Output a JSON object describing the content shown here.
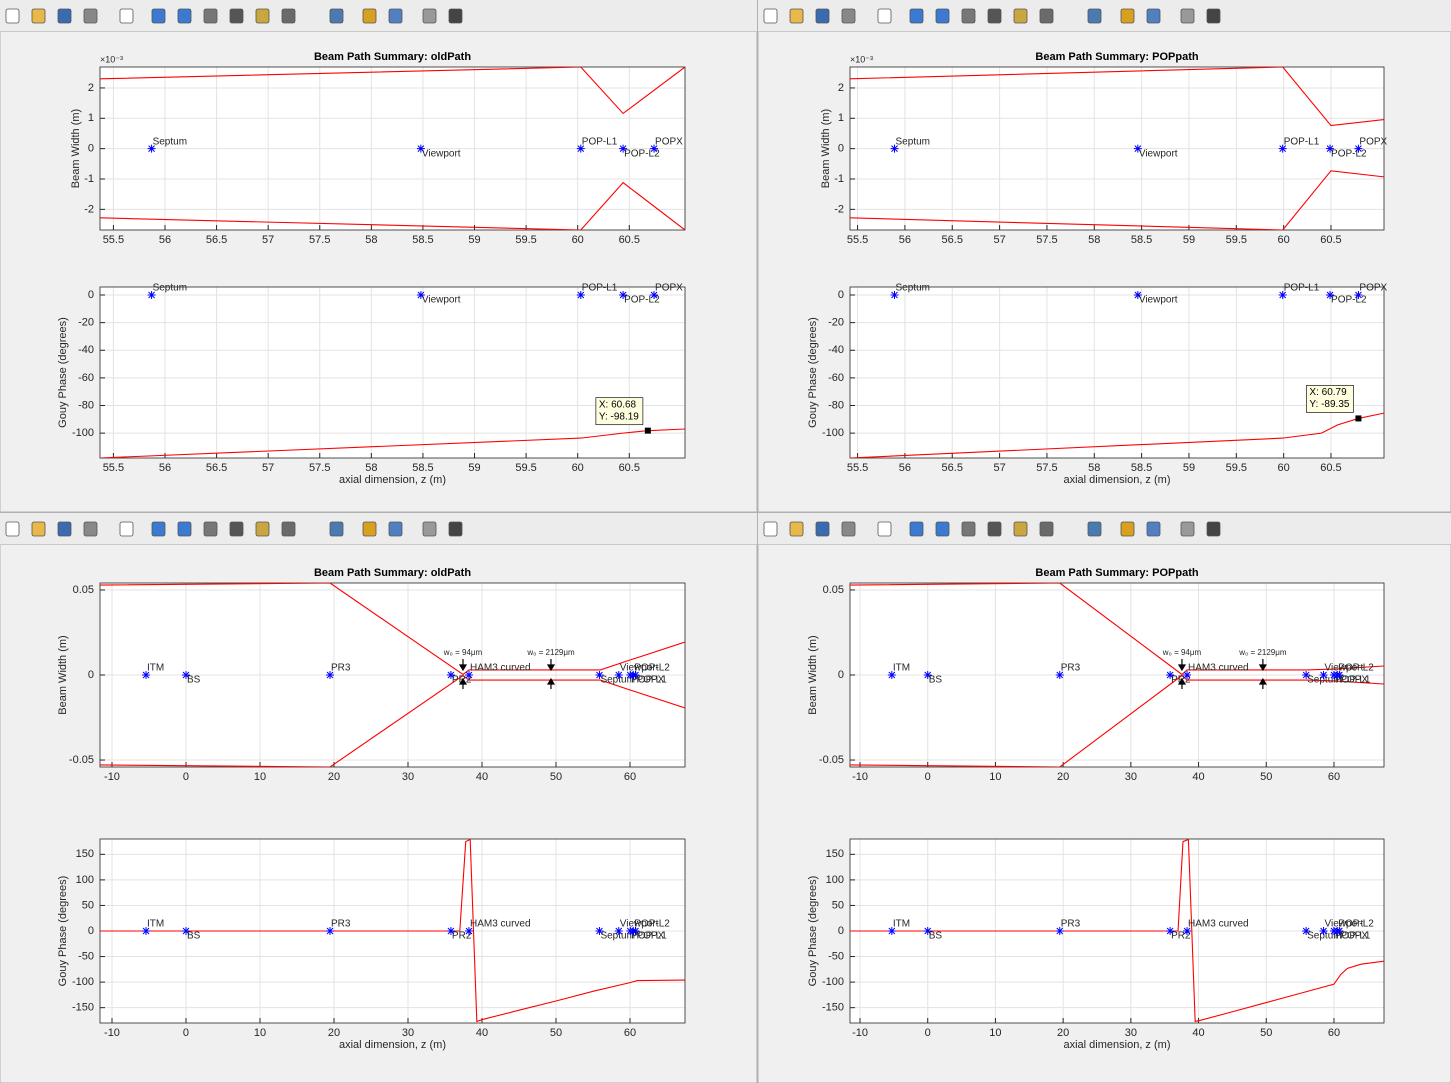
{
  "chart_data": [
    {
      "type": "line",
      "title": "Beam Path Summary: oldPath",
      "ylabel": "Beam Width (m)",
      "y_multiplier": "×10⁻³",
      "xlim": [
        55.37,
        61.04
      ],
      "ylim": [
        -2.68,
        2.69
      ],
      "xticks": [
        55.5,
        56,
        56.5,
        57,
        57.5,
        58,
        58.5,
        59,
        59.5,
        60,
        60.5
      ],
      "yticks": [
        -2,
        -1,
        0,
        1,
        2
      ],
      "grid": true,
      "series": [
        {
          "color": "#ff0000",
          "x": [
            55.37,
            60.03,
            60.44,
            61.04
          ],
          "values": [
            2.3,
            2.69,
            1.16,
            2.69
          ]
        },
        {
          "color": "#ff0000",
          "x": [
            55.37,
            60.03,
            60.44,
            61.04
          ],
          "values": [
            -2.28,
            -2.68,
            -1.12,
            -2.68
          ]
        }
      ],
      "points": {
        "color": "#0000ff",
        "labels": [
          "Septum",
          "Viewport",
          "POP-L1",
          "POP-L2",
          "POPX"
        ],
        "x": [
          55.87,
          58.48,
          60.03,
          60.44,
          60.74
        ],
        "values": [
          0,
          0,
          0,
          0,
          0
        ]
      }
    },
    {
      "type": "line",
      "ylabel": "Gouy Phase (degrees)",
      "xlabel": "axial dimension, z (m)",
      "xlim": [
        55.37,
        61.04
      ],
      "ylim": [
        -118,
        5.8
      ],
      "xticks": [
        55.5,
        56,
        56.5,
        57,
        57.5,
        58,
        58.5,
        59,
        59.5,
        60,
        60.5
      ],
      "yticks": [
        -100,
        -80,
        -60,
        -40,
        -20,
        0
      ],
      "grid": true,
      "series": [
        {
          "color": "#ff0000",
          "x": [
            55.37,
            60.03,
            60.44,
            60.68,
            61.04
          ],
          "values": [
            -118,
            -103.6,
            -100,
            -98.19,
            -97
          ]
        }
      ],
      "points": {
        "color": "#0000ff",
        "labels": [
          "Septum",
          "Viewport",
          "POP-L1",
          "POP-L2",
          "POPX"
        ],
        "x": [
          55.87,
          58.48,
          60.03,
          60.44,
          60.74
        ],
        "values": [
          0,
          0,
          0,
          0,
          0
        ]
      },
      "datatip": {
        "x": 60.68,
        "y": -98.19,
        "x_label": "X: 60.68",
        "y_label": "Y: -98.19"
      }
    },
    {
      "type": "line",
      "title": "Beam Path Summary: POPpath",
      "ylabel": "Beam Width (m)",
      "y_multiplier": "×10⁻³",
      "xlim": [
        55.42,
        61.06
      ],
      "ylim": [
        -2.68,
        2.69
      ],
      "xticks": [
        55.5,
        56,
        56.5,
        57,
        57.5,
        58,
        58.5,
        59,
        59.5,
        60,
        60.5
      ],
      "yticks": [
        -2,
        -1,
        0,
        1,
        2
      ],
      "grid": true,
      "series": [
        {
          "color": "#ff0000",
          "x": [
            55.42,
            59.99,
            60.5,
            61.06
          ],
          "values": [
            2.3,
            2.69,
            0.76,
            0.96
          ]
        },
        {
          "color": "#ff0000",
          "x": [
            55.42,
            59.99,
            60.5,
            61.06
          ],
          "values": [
            -2.28,
            -2.68,
            -0.73,
            -0.93
          ]
        }
      ],
      "points": {
        "color": "#0000ff",
        "labels": [
          "Septum",
          "Viewport",
          "POP-L1",
          "POP-L2",
          "POPX"
        ],
        "x": [
          55.89,
          58.46,
          59.99,
          60.49,
          60.79
        ],
        "values": [
          0,
          0,
          0,
          0,
          0
        ]
      }
    },
    {
      "type": "line",
      "ylabel": "Gouy Phase (degrees)",
      "xlabel": "axial dimension, z (m)",
      "xlim": [
        55.42,
        61.06
      ],
      "ylim": [
        -118,
        5.8
      ],
      "xticks": [
        55.5,
        56,
        56.5,
        57,
        57.5,
        58,
        58.5,
        59,
        59.5,
        60,
        60.5
      ],
      "yticks": [
        -100,
        -80,
        -60,
        -40,
        -20,
        0
      ],
      "grid": true,
      "series": [
        {
          "color": "#ff0000",
          "x": [
            55.42,
            59.99,
            60.4,
            60.57,
            60.79,
            61.06
          ],
          "values": [
            -118,
            -103.6,
            -100,
            -94,
            -89.35,
            -85.5
          ]
        }
      ],
      "points": {
        "color": "#0000ff",
        "labels": [
          "Septum",
          "Viewport",
          "POP-L1",
          "POP-L2",
          "POPX"
        ],
        "x": [
          55.89,
          58.46,
          59.99,
          60.49,
          60.79
        ],
        "values": [
          0,
          0,
          0,
          0,
          0
        ]
      },
      "datatip": {
        "x": 60.79,
        "y": -89.35,
        "x_label": "X: 60.79",
        "y_label": "Y: -89.35"
      }
    },
    {
      "type": "line",
      "title": "Beam Path Summary: oldPath",
      "ylabel": "Beam Width (m)",
      "xlim": [
        -11.62,
        67.43
      ],
      "ylim": [
        -0.0541,
        0.0541
      ],
      "xticks": [
        -10,
        0,
        10,
        20,
        30,
        40,
        50,
        60
      ],
      "yticks": [
        -0.05,
        0,
        0.05
      ],
      "grid": true,
      "series": [
        {
          "color": "#ff0000",
          "x": [
            -11.62,
            19.46,
            37.43,
            38.24,
            56,
            60,
            67.43
          ],
          "values": [
            0.0529,
            0.0541,
            0.0003,
            0.003,
            0.003,
            0.0088,
            0.0194
          ]
        },
        {
          "color": "#ff0000",
          "x": [
            -11.62,
            19.46,
            37.43,
            38.24,
            56,
            60,
            67.43
          ],
          "values": [
            -0.0529,
            -0.0541,
            -0.0003,
            -0.003,
            -0.003,
            -0.0088,
            -0.0194
          ]
        }
      ],
      "points": {
        "color": "#0000ff",
        "labels": [
          "ITM",
          "BS",
          "PR3",
          "PR2",
          "HAM3 curved",
          "Septum",
          "Viewport",
          "POP-L1",
          "POP-L2",
          "POPX"
        ],
        "x": [
          -5.4,
          0,
          19.46,
          35.8,
          38.24,
          55.87,
          58.48,
          60.03,
          60.44,
          60.74
        ],
        "values": [
          0,
          0,
          0,
          0,
          0,
          0,
          0,
          0,
          0,
          0
        ]
      },
      "annotations": [
        {
          "text": "w₀ = 94μm",
          "x": 37.43
        },
        {
          "text": "w₀ = 2129μm",
          "x": 49.32
        }
      ]
    },
    {
      "type": "line",
      "ylabel": "Gouy Phase (degrees)",
      "xlabel": "axial dimension, z (m)",
      "xlim": [
        -11.62,
        67.43
      ],
      "ylim": [
        -180,
        180
      ],
      "xticks": [
        -10,
        0,
        10,
        20,
        30,
        40,
        50,
        60
      ],
      "yticks": [
        -150,
        -100,
        -50,
        0,
        50,
        100,
        150
      ],
      "grid": true,
      "series": [
        {
          "color": "#ff0000",
          "x": [
            -11.62,
            37,
            37.8,
            38.4,
            39.3,
            40.1,
            45,
            50,
            55,
            60,
            61,
            67.43
          ],
          "values": [
            0,
            0,
            175,
            179,
            -177,
            -173,
            -155,
            -137,
            -118,
            -101,
            -97,
            -96
          ]
        }
      ],
      "points": {
        "color": "#0000ff",
        "labels": [
          "ITM",
          "BS",
          "PR3",
          "PR2",
          "HAM3 curved",
          "Septum",
          "Viewport",
          "POP-L1",
          "POP-L2",
          "POPX"
        ],
        "x": [
          -5.4,
          0,
          19.46,
          35.8,
          38.24,
          55.87,
          58.48,
          60.03,
          60.44,
          60.74
        ],
        "values": [
          0,
          0,
          0,
          0,
          0,
          0,
          0,
          0,
          0,
          0
        ]
      }
    },
    {
      "type": "line",
      "title": "Beam Path Summary: POPpath",
      "ylabel": "Beam Width (m)",
      "xlim": [
        -11.48,
        67.39
      ],
      "ylim": [
        -0.0541,
        0.0541
      ],
      "xticks": [
        -10,
        0,
        10,
        20,
        30,
        40,
        50,
        60
      ],
      "yticks": [
        -0.05,
        0,
        0.05
      ],
      "grid": true,
      "series": [
        {
          "color": "#ff0000",
          "x": [
            -11.48,
            19.5,
            37.55,
            38.3,
            56,
            60,
            67.39
          ],
          "values": [
            0.0529,
            0.0541,
            0.0003,
            0.003,
            0.003,
            0.0035,
            0.0053
          ]
        },
        {
          "color": "#ff0000",
          "x": [
            -11.48,
            19.5,
            37.55,
            38.3,
            56,
            60,
            67.39
          ],
          "values": [
            -0.0529,
            -0.0541,
            -0.0003,
            -0.003,
            -0.003,
            -0.0035,
            -0.0053
          ]
        }
      ],
      "points": {
        "color": "#0000ff",
        "labels": [
          "ITM",
          "BS",
          "PR3",
          "PR2",
          "HAM3 curved",
          "Septum",
          "Viewport",
          "POP-L1",
          "POP-L2",
          "POPX"
        ],
        "x": [
          -5.3,
          0,
          19.5,
          35.8,
          38.3,
          55.89,
          58.46,
          59.99,
          60.49,
          60.79
        ],
        "values": [
          0,
          0,
          0,
          0,
          0,
          0,
          0,
          0,
          0,
          0
        ]
      },
      "annotations": [
        {
          "text": "w₀ = 94μm",
          "x": 37.55
        },
        {
          "text": "w₀ = 2129μm",
          "x": 49.5
        }
      ]
    },
    {
      "type": "line",
      "ylabel": "Gouy Phase (degrees)",
      "xlabel": "axial dimension, z (m)",
      "xlim": [
        -11.48,
        67.39
      ],
      "ylim": [
        -180,
        180
      ],
      "xticks": [
        -10,
        0,
        10,
        20,
        30,
        40,
        50,
        60
      ],
      "yticks": [
        -150,
        -100,
        -50,
        0,
        50,
        100,
        150
      ],
      "grid": true,
      "series": [
        {
          "color": "#ff0000",
          "x": [
            -11.48,
            36.97,
            37.7,
            38.5,
            39.5,
            40.2,
            45,
            50,
            55,
            60,
            61,
            62,
            64,
            67.39
          ],
          "values": [
            0,
            0,
            175,
            179,
            -177,
            -175,
            -158,
            -140,
            -122,
            -104,
            -85,
            -73,
            -65,
            -59
          ]
        }
      ],
      "points": {
        "color": "#0000ff",
        "labels": [
          "ITM",
          "BS",
          "PR3",
          "PR2",
          "HAM3 curved",
          "Septum",
          "Viewport",
          "POP-L1",
          "POP-L2",
          "POPX"
        ],
        "x": [
          -5.3,
          0,
          19.5,
          35.8,
          38.3,
          55.89,
          58.46,
          59.99,
          60.49,
          60.79
        ],
        "values": [
          0,
          0,
          0,
          0,
          0,
          0,
          0,
          0,
          0,
          0
        ]
      }
    }
  ]
}
